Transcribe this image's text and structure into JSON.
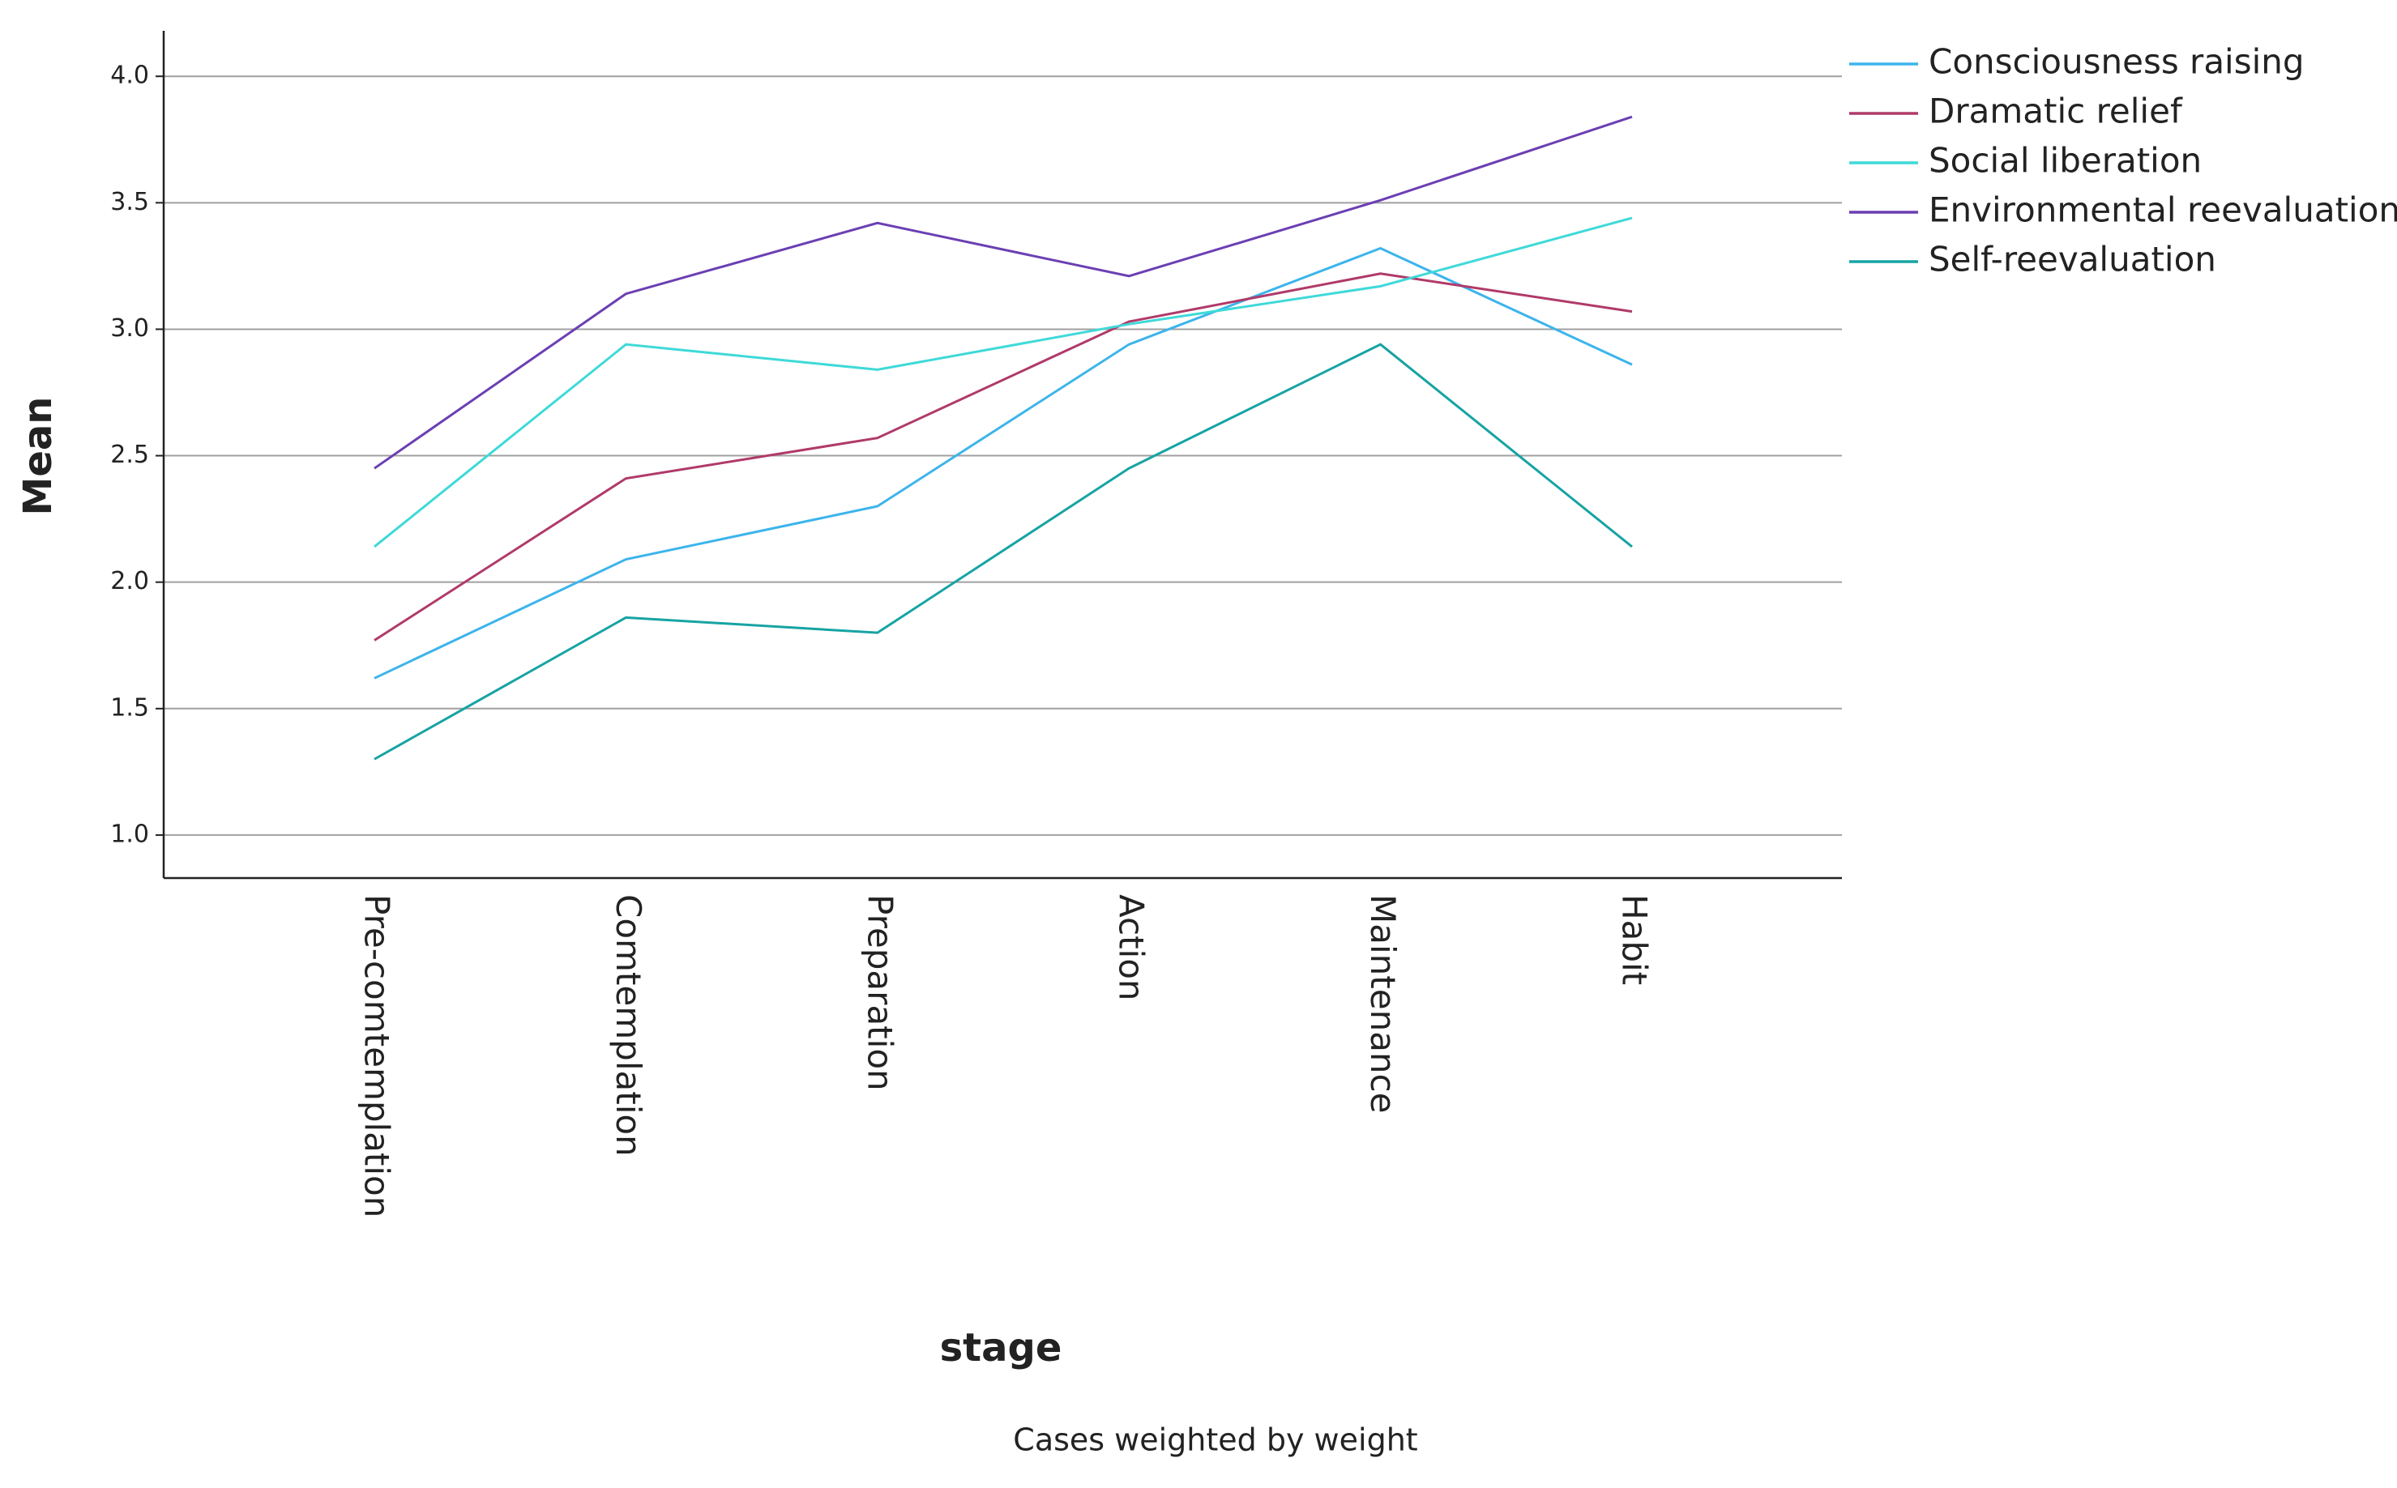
{
  "chart_data": {
    "type": "line",
    "y_label": "Mean",
    "x_label": "stage",
    "note": "Cases weighted by weight",
    "categories": [
      "Pre-comtemplation",
      "Comtemplation",
      "Preparation",
      "Action",
      "Maintenance",
      "Habit"
    ],
    "series": [
      {
        "name": "Consciousness raising",
        "color": "#3cb4ec",
        "values": [
          1.62,
          2.09,
          2.3,
          2.94,
          3.32,
          2.86
        ]
      },
      {
        "name": "Dramatic relief",
        "color": "#b03a6a",
        "values": [
          1.77,
          2.41,
          2.57,
          3.03,
          3.22,
          3.07
        ]
      },
      {
        "name": "Social liberation",
        "color": "#3fd9d9",
        "values": [
          2.14,
          2.94,
          2.84,
          3.02,
          3.17,
          3.44
        ]
      },
      {
        "name": "Environmental reevaluation",
        "color": "#6b3fb3",
        "values": [
          2.45,
          3.14,
          3.42,
          3.21,
          3.51,
          3.84
        ]
      },
      {
        "name": "Self-reevaluation",
        "color": "#17a3a3",
        "values": [
          1.3,
          1.86,
          1.8,
          2.45,
          2.94,
          2.14
        ]
      }
    ],
    "ylim": [
      0.83,
      4.18
    ],
    "yticks": [
      {
        "value": 1,
        "label": "1.0"
      },
      1.5,
      {
        "value": 2,
        "label": "2.0"
      },
      2.5,
      {
        "value": 3,
        "label": "3.0"
      },
      3.5,
      {
        "value": 4,
        "label": "4.0"
      }
    ],
    "grid": true,
    "legend": "right"
  }
}
